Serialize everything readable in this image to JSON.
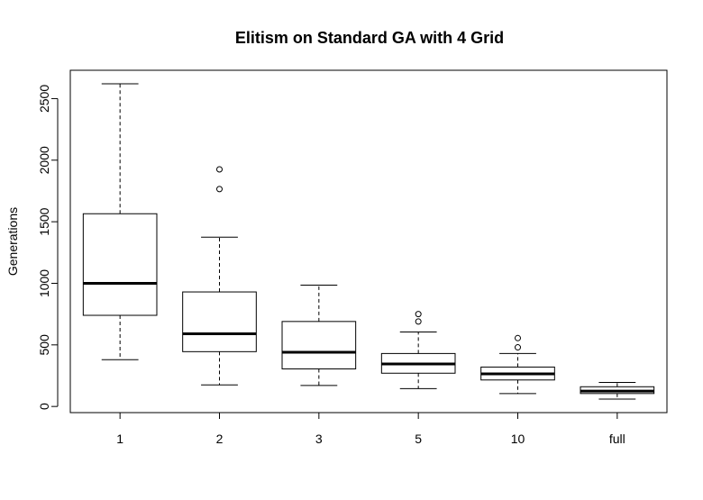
{
  "chart_data": {
    "type": "boxplot",
    "title": "Elitism on Standard GA with 4 Grid",
    "xlabel": "",
    "ylabel": "Generations",
    "ylim": [
      -50,
      2730
    ],
    "y_ticks": [
      0,
      500,
      1000,
      1500,
      2000,
      2500
    ],
    "categories": [
      "1",
      "2",
      "3",
      "5",
      "10",
      "full"
    ],
    "boxes": [
      {
        "category": "1",
        "whisker_low": 380,
        "q1": 740,
        "median": 1000,
        "q3": 1565,
        "whisker_high": 2620,
        "outliers": []
      },
      {
        "category": "2",
        "whisker_low": 175,
        "q1": 445,
        "median": 590,
        "q3": 930,
        "whisker_high": 1375,
        "outliers": [
          1765,
          1925
        ]
      },
      {
        "category": "3",
        "whisker_low": 170,
        "q1": 305,
        "median": 440,
        "q3": 690,
        "whisker_high": 985,
        "outliers": []
      },
      {
        "category": "5",
        "whisker_low": 145,
        "q1": 270,
        "median": 345,
        "q3": 430,
        "whisker_high": 605,
        "outliers": [
          690,
          750
        ]
      },
      {
        "category": "10",
        "whisker_low": 105,
        "q1": 215,
        "median": 265,
        "q3": 320,
        "whisker_high": 430,
        "outliers": [
          480,
          555
        ]
      },
      {
        "category": "full",
        "whisker_low": 60,
        "q1": 105,
        "median": 125,
        "q3": 160,
        "whisker_high": 195,
        "outliers": []
      }
    ],
    "grid": false,
    "legend": "none"
  }
}
